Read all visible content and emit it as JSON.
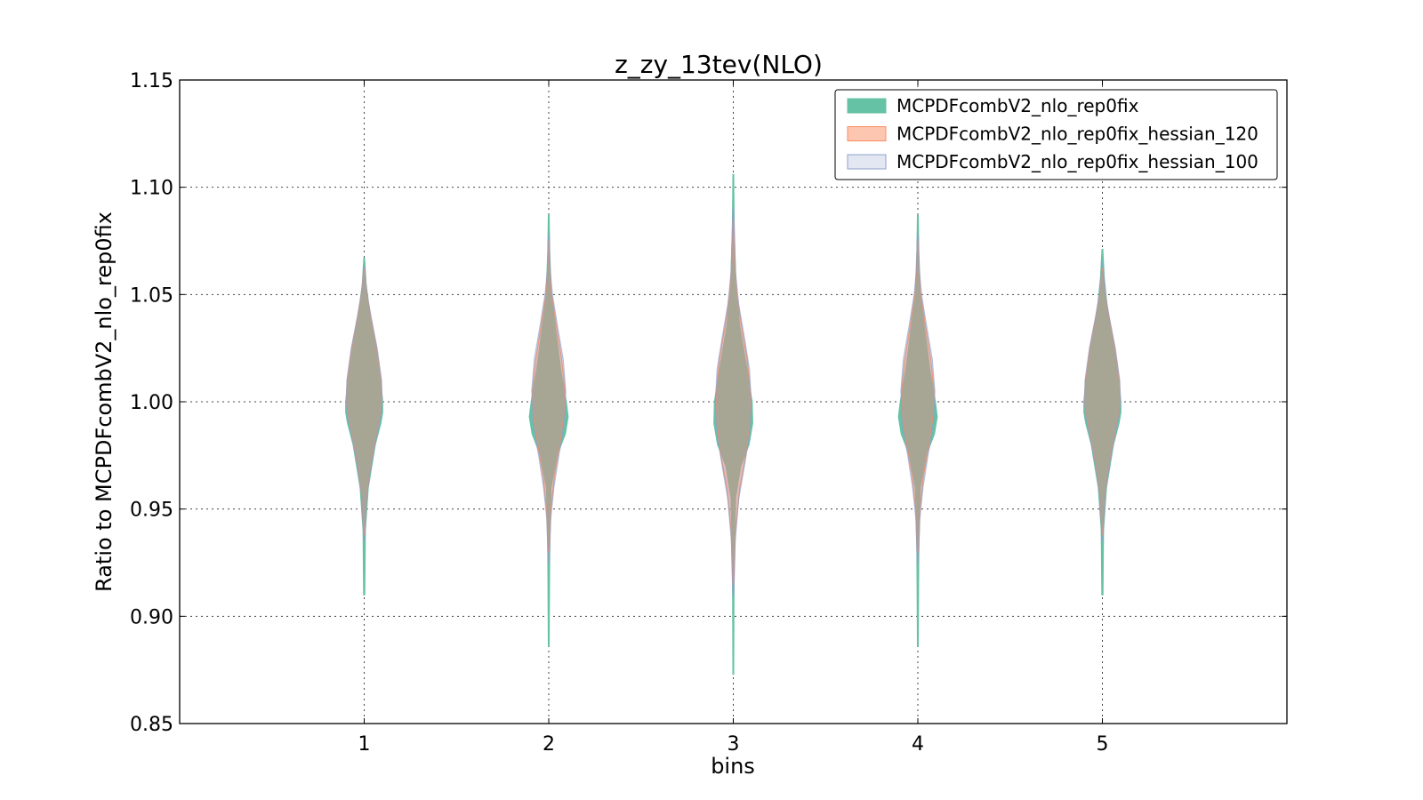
{
  "chart_data": {
    "type": "violin",
    "title": "z_zy_13tev(NLO)",
    "xlabel": "bins",
    "ylabel": "Ratio to MCPDFcombV2_nlo_rep0fix",
    "xlim": [
      0,
      6
    ],
    "ylim": [
      0.85,
      1.15
    ],
    "x_ticks": [
      "1",
      "2",
      "3",
      "4",
      "5"
    ],
    "y_ticks": [
      "0.85",
      "0.90",
      "0.95",
      "1.00",
      "1.05",
      "1.10",
      "1.15"
    ],
    "grid": true,
    "legend_position": "top-right",
    "series": [
      {
        "name": "MCPDFcombV2_nlo_rep0fix",
        "color": "#66c2a5",
        "opacity": 1.0,
        "violins": [
          {
            "bin": 1,
            "min": 0.91,
            "max": 1.067,
            "profile": [
              [
                0.91,
                0.003
              ],
              [
                0.94,
                0.006
              ],
              [
                0.96,
                0.022
              ],
              [
                0.98,
                0.06
              ],
              [
                0.99,
                0.09
              ],
              [
                0.995,
                0.1
              ],
              [
                1.0,
                0.1
              ],
              [
                1.01,
                0.09
              ],
              [
                1.03,
                0.055
              ],
              [
                1.045,
                0.025
              ],
              [
                1.055,
                0.01
              ],
              [
                1.067,
                0.002
              ]
            ]
          },
          {
            "bin": 2,
            "min": 0.886,
            "max": 1.087,
            "profile": [
              [
                0.886,
                0.002
              ],
              [
                0.93,
                0.005
              ],
              [
                0.96,
                0.012
              ],
              [
                0.975,
                0.045
              ],
              [
                0.985,
                0.09
              ],
              [
                0.993,
                0.105
              ],
              [
                1.0,
                0.095
              ],
              [
                1.015,
                0.065
              ],
              [
                1.035,
                0.035
              ],
              [
                1.05,
                0.014
              ],
              [
                1.07,
                0.005
              ],
              [
                1.087,
                0.002
              ]
            ]
          },
          {
            "bin": 3,
            "min": 0.873,
            "max": 1.106,
            "profile": [
              [
                0.873,
                0.002
              ],
              [
                0.92,
                0.004
              ],
              [
                0.955,
                0.012
              ],
              [
                0.97,
                0.04
              ],
              [
                0.98,
                0.085
              ],
              [
                0.99,
                0.105
              ],
              [
                1.0,
                0.102
              ],
              [
                1.015,
                0.075
              ],
              [
                1.035,
                0.035
              ],
              [
                1.055,
                0.014
              ],
              [
                1.08,
                0.005
              ],
              [
                1.106,
                0.002
              ]
            ]
          },
          {
            "bin": 4,
            "min": 0.886,
            "max": 1.087,
            "profile": [
              [
                0.886,
                0.002
              ],
              [
                0.93,
                0.005
              ],
              [
                0.96,
                0.013
              ],
              [
                0.975,
                0.045
              ],
              [
                0.985,
                0.09
              ],
              [
                0.993,
                0.105
              ],
              [
                1.0,
                0.095
              ],
              [
                1.015,
                0.065
              ],
              [
                1.035,
                0.035
              ],
              [
                1.05,
                0.014
              ],
              [
                1.07,
                0.005
              ],
              [
                1.087,
                0.002
              ]
            ]
          },
          {
            "bin": 5,
            "min": 0.91,
            "max": 1.071,
            "profile": [
              [
                0.91,
                0.003
              ],
              [
                0.94,
                0.006
              ],
              [
                0.96,
                0.022
              ],
              [
                0.98,
                0.06
              ],
              [
                0.99,
                0.09
              ],
              [
                0.995,
                0.1
              ],
              [
                1.0,
                0.1
              ],
              [
                1.01,
                0.09
              ],
              [
                1.03,
                0.055
              ],
              [
                1.045,
                0.025
              ],
              [
                1.058,
                0.01
              ],
              [
                1.071,
                0.002
              ]
            ]
          }
        ]
      },
      {
        "name": "MCPDFcombV2_nlo_rep0fix_hessian_120",
        "color": "#fc8d62",
        "opacity": 0.5,
        "violins": [
          {
            "bin": 1,
            "min": 0.938,
            "max": 1.062,
            "profile": [
              [
                0.938,
                0.003
              ],
              [
                0.955,
                0.012
              ],
              [
                0.97,
                0.035
              ],
              [
                0.985,
                0.068
              ],
              [
                0.995,
                0.09
              ],
              [
                1.0,
                0.096
              ],
              [
                1.01,
                0.092
              ],
              [
                1.025,
                0.068
              ],
              [
                1.04,
                0.035
              ],
              [
                1.052,
                0.012
              ],
              [
                1.062,
                0.003
              ]
            ]
          },
          {
            "bin": 2,
            "min": 0.93,
            "max": 1.075,
            "profile": [
              [
                0.93,
                0.003
              ],
              [
                0.95,
                0.012
              ],
              [
                0.965,
                0.03
              ],
              [
                0.98,
                0.06
              ],
              [
                0.995,
                0.085
              ],
              [
                1.005,
                0.088
              ],
              [
                1.02,
                0.07
              ],
              [
                1.035,
                0.042
              ],
              [
                1.05,
                0.016
              ],
              [
                1.062,
                0.006
              ],
              [
                1.075,
                0.002
              ]
            ]
          },
          {
            "bin": 3,
            "min": 0.915,
            "max": 1.085,
            "profile": [
              [
                0.915,
                0.003
              ],
              [
                0.94,
                0.012
              ],
              [
                0.96,
                0.035
              ],
              [
                0.975,
                0.068
              ],
              [
                0.99,
                0.09
              ],
              [
                1.005,
                0.092
              ],
              [
                1.02,
                0.075
              ],
              [
                1.035,
                0.045
              ],
              [
                1.05,
                0.02
              ],
              [
                1.065,
                0.008
              ],
              [
                1.085,
                0.002
              ]
            ]
          },
          {
            "bin": 4,
            "min": 0.93,
            "max": 1.075,
            "profile": [
              [
                0.93,
                0.003
              ],
              [
                0.95,
                0.012
              ],
              [
                0.965,
                0.03
              ],
              [
                0.98,
                0.06
              ],
              [
                0.995,
                0.085
              ],
              [
                1.005,
                0.088
              ],
              [
                1.02,
                0.07
              ],
              [
                1.035,
                0.042
              ],
              [
                1.05,
                0.016
              ],
              [
                1.062,
                0.006
              ],
              [
                1.075,
                0.002
              ]
            ]
          },
          {
            "bin": 5,
            "min": 0.938,
            "max": 1.062,
            "profile": [
              [
                0.938,
                0.003
              ],
              [
                0.955,
                0.012
              ],
              [
                0.97,
                0.035
              ],
              [
                0.985,
                0.068
              ],
              [
                0.995,
                0.09
              ],
              [
                1.0,
                0.096
              ],
              [
                1.01,
                0.092
              ],
              [
                1.025,
                0.068
              ],
              [
                1.04,
                0.035
              ],
              [
                1.052,
                0.012
              ],
              [
                1.062,
                0.003
              ]
            ]
          }
        ]
      },
      {
        "name": "MCPDFcombV2_nlo_rep0fix_hessian_100",
        "color": "#8da0cb",
        "opacity": 0.25,
        "violins": [
          {
            "bin": 1,
            "min": 0.935,
            "max": 1.063,
            "profile": [
              [
                0.935,
                0.003
              ],
              [
                0.955,
                0.012
              ],
              [
                0.97,
                0.036
              ],
              [
                0.985,
                0.07
              ],
              [
                0.995,
                0.092
              ],
              [
                1.0,
                0.097
              ],
              [
                1.01,
                0.094
              ],
              [
                1.025,
                0.07
              ],
              [
                1.04,
                0.036
              ],
              [
                1.052,
                0.012
              ],
              [
                1.063,
                0.003
              ]
            ]
          },
          {
            "bin": 2,
            "min": 0.925,
            "max": 1.078,
            "profile": [
              [
                0.925,
                0.003
              ],
              [
                0.945,
                0.01
              ],
              [
                0.96,
                0.028
              ],
              [
                0.975,
                0.055
              ],
              [
                0.99,
                0.085
              ],
              [
                1.005,
                0.092
              ],
              [
                1.02,
                0.078
              ],
              [
                1.035,
                0.048
              ],
              [
                1.05,
                0.02
              ],
              [
                1.062,
                0.007
              ],
              [
                1.078,
                0.002
              ]
            ]
          },
          {
            "bin": 3,
            "min": 0.91,
            "max": 1.09,
            "profile": [
              [
                0.91,
                0.003
              ],
              [
                0.935,
                0.01
              ],
              [
                0.955,
                0.03
              ],
              [
                0.97,
                0.06
              ],
              [
                0.985,
                0.088
              ],
              [
                1.0,
                0.097
              ],
              [
                1.015,
                0.088
              ],
              [
                1.03,
                0.06
              ],
              [
                1.045,
                0.03
              ],
              [
                1.06,
                0.012
              ],
              [
                1.09,
                0.002
              ]
            ]
          },
          {
            "bin": 4,
            "min": 0.925,
            "max": 1.078,
            "profile": [
              [
                0.925,
                0.003
              ],
              [
                0.945,
                0.01
              ],
              [
                0.96,
                0.028
              ],
              [
                0.975,
                0.055
              ],
              [
                0.99,
                0.085
              ],
              [
                1.005,
                0.092
              ],
              [
                1.02,
                0.078
              ],
              [
                1.035,
                0.048
              ],
              [
                1.05,
                0.02
              ],
              [
                1.062,
                0.007
              ],
              [
                1.078,
                0.002
              ]
            ]
          },
          {
            "bin": 5,
            "min": 0.935,
            "max": 1.065,
            "profile": [
              [
                0.935,
                0.003
              ],
              [
                0.955,
                0.012
              ],
              [
                0.97,
                0.036
              ],
              [
                0.985,
                0.07
              ],
              [
                0.995,
                0.092
              ],
              [
                1.0,
                0.097
              ],
              [
                1.01,
                0.094
              ],
              [
                1.025,
                0.07
              ],
              [
                1.04,
                0.036
              ],
              [
                1.052,
                0.012
              ],
              [
                1.065,
                0.003
              ]
            ]
          }
        ]
      }
    ]
  }
}
